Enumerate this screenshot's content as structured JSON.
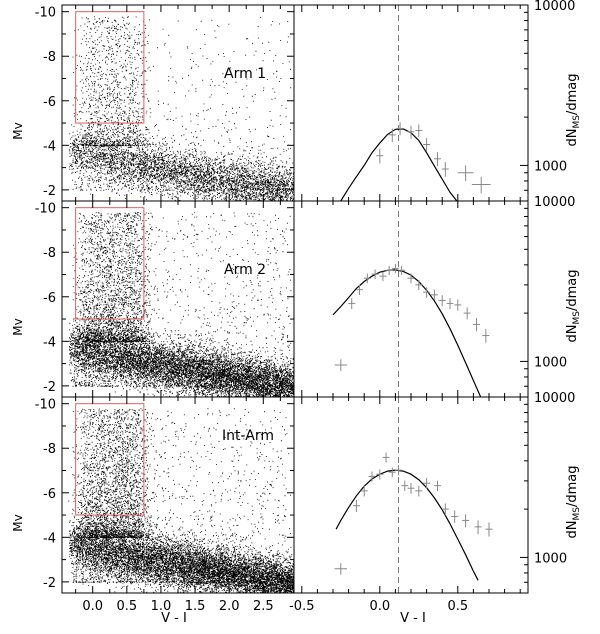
{
  "chart_data": [
    {
      "type": "scatter",
      "panel": "cmd",
      "label": "Arm 1",
      "xlabel": "",
      "ylabel": "Mv",
      "xlim": [
        -0.45,
        2.95
      ],
      "ylim": [
        -1.5,
        -10.3
      ],
      "y_ticks": [
        "-10",
        "-8",
        "-6",
        "-4",
        "-2"
      ],
      "selection_box": {
        "x": [
          -0.25,
          0.75
        ],
        "y": [
          -5,
          -10
        ]
      },
      "density": 6500
    },
    {
      "type": "line",
      "panel": "lf",
      "ylabel": "dN_MS/dmag",
      "xlim": [
        -0.55,
        0.95
      ],
      "ylim": [
        600,
        10000
      ],
      "y_log": true,
      "y_ticks": [
        "10000",
        "1000"
      ],
      "vline_x": 0.12,
      "points": [
        {
          "x": 0.0,
          "y": 1150,
          "err": 120
        },
        {
          "x": 0.08,
          "y": 1550,
          "err": 150
        },
        {
          "x": 0.13,
          "y": 1700,
          "err": 160
        },
        {
          "x": 0.2,
          "y": 1620,
          "err": 150
        },
        {
          "x": 0.25,
          "y": 1650,
          "err": 150
        },
        {
          "x": 0.3,
          "y": 1350,
          "err": 130
        },
        {
          "x": 0.37,
          "y": 1100,
          "err": 110
        },
        {
          "x": 0.42,
          "y": 950,
          "err": 100
        },
        {
          "x": 0.55,
          "y": 900,
          "err": 100,
          "xerr": 0.05
        },
        {
          "x": 0.65,
          "y": 760,
          "err": 90,
          "xerr": 0.06
        }
      ],
      "model": [
        [
          -0.3,
          520
        ],
        [
          -0.25,
          600
        ],
        [
          -0.2,
          720
        ],
        [
          -0.15,
          850
        ],
        [
          -0.1,
          1000
        ],
        [
          -0.05,
          1200
        ],
        [
          0.0,
          1380
        ],
        [
          0.05,
          1560
        ],
        [
          0.1,
          1680
        ],
        [
          0.15,
          1690
        ],
        [
          0.2,
          1600
        ],
        [
          0.25,
          1430
        ],
        [
          0.3,
          1200
        ],
        [
          0.35,
          990
        ],
        [
          0.4,
          820
        ],
        [
          0.45,
          680
        ],
        [
          0.5,
          590
        ],
        [
          0.55,
          520
        ]
      ]
    },
    {
      "type": "scatter",
      "panel": "cmd",
      "label": "Arm 2",
      "xlabel": "",
      "ylabel": "Mv",
      "xlim": [
        -0.45,
        2.95
      ],
      "ylim": [
        -1.5,
        -10.3
      ],
      "y_ticks": [
        "-10",
        "-8",
        "-6",
        "-4",
        "-2"
      ],
      "selection_box": {
        "x": [
          -0.25,
          0.75
        ],
        "y": [
          -5,
          -10
        ]
      },
      "density": 13000
    },
    {
      "type": "line",
      "panel": "lf",
      "ylabel": "dN_MS/dmag",
      "xlim": [
        -0.55,
        0.95
      ],
      "ylim": [
        600,
        10000
      ],
      "y_log": true,
      "y_ticks": [
        "10000",
        "1000"
      ],
      "vline_x": 0.12,
      "points": [
        {
          "x": -0.25,
          "y": 950,
          "err": 80,
          "xerr": 0.04
        },
        {
          "x": -0.18,
          "y": 2300,
          "err": 180
        },
        {
          "x": -0.13,
          "y": 2800,
          "err": 200
        },
        {
          "x": -0.08,
          "y": 3300,
          "err": 230
        },
        {
          "x": -0.03,
          "y": 3500,
          "err": 240
        },
        {
          "x": 0.02,
          "y": 3400,
          "err": 230
        },
        {
          "x": 0.06,
          "y": 3700,
          "err": 250
        },
        {
          "x": 0.1,
          "y": 3800,
          "err": 250
        },
        {
          "x": 0.14,
          "y": 3700,
          "err": 250
        },
        {
          "x": 0.2,
          "y": 3300,
          "err": 230
        },
        {
          "x": 0.25,
          "y": 3000,
          "err": 220
        },
        {
          "x": 0.3,
          "y": 2700,
          "err": 200
        },
        {
          "x": 0.35,
          "y": 2600,
          "err": 200
        },
        {
          "x": 0.4,
          "y": 2400,
          "err": 190
        },
        {
          "x": 0.45,
          "y": 2300,
          "err": 180
        },
        {
          "x": 0.5,
          "y": 2250,
          "err": 180
        },
        {
          "x": 0.56,
          "y": 2000,
          "err": 170
        },
        {
          "x": 0.62,
          "y": 1700,
          "err": 160
        },
        {
          "x": 0.68,
          "y": 1450,
          "err": 140
        }
      ],
      "model": [
        [
          -0.3,
          1950
        ],
        [
          -0.25,
          2200
        ],
        [
          -0.2,
          2500
        ],
        [
          -0.15,
          2850
        ],
        [
          -0.1,
          3150
        ],
        [
          -0.05,
          3400
        ],
        [
          0.0,
          3600
        ],
        [
          0.05,
          3700
        ],
        [
          0.1,
          3720
        ],
        [
          0.15,
          3640
        ],
        [
          0.2,
          3450
        ],
        [
          0.25,
          3150
        ],
        [
          0.3,
          2780
        ],
        [
          0.35,
          2380
        ],
        [
          0.4,
          1980
        ],
        [
          0.45,
          1600
        ],
        [
          0.5,
          1260
        ],
        [
          0.55,
          980
        ],
        [
          0.6,
          760
        ],
        [
          0.65,
          590
        ],
        [
          0.7,
          460
        ]
      ]
    },
    {
      "type": "scatter",
      "panel": "cmd",
      "label": "Int-Arm",
      "xlabel": "V - I",
      "ylabel": "Mv",
      "xlim": [
        -0.45,
        2.95
      ],
      "ylim": [
        -1.5,
        -10.3
      ],
      "x_ticks": [
        "0.0",
        "0.5",
        "1.0",
        "1.5",
        "2.0",
        "2.5"
      ],
      "x_tick_values": [
        0.0,
        0.5,
        1.0,
        1.5,
        2.0,
        2.5
      ],
      "y_ticks": [
        "-10",
        "-8",
        "-6",
        "-4",
        "-2"
      ],
      "selection_box": {
        "x": [
          -0.25,
          0.75
        ],
        "y": [
          -5,
          -10
        ]
      },
      "density": 14000
    },
    {
      "type": "line",
      "panel": "lf",
      "xlabel": "V - I",
      "ylabel": "dN_MS/dmag",
      "xlim": [
        -0.55,
        0.95
      ],
      "ylim": [
        600,
        10000
      ],
      "y_log": true,
      "x_ticks": [
        "-0.5",
        "0.0",
        "0.5"
      ],
      "x_tick_values": [
        -0.5,
        0.0,
        0.5
      ],
      "y_ticks": [
        "10000",
        "1000"
      ],
      "vline_x": 0.12,
      "points": [
        {
          "x": -0.25,
          "y": 850,
          "err": 70,
          "xerr": 0.04
        },
        {
          "x": -0.15,
          "y": 2100,
          "err": 180
        },
        {
          "x": -0.1,
          "y": 2600,
          "err": 200
        },
        {
          "x": -0.05,
          "y": 3200,
          "err": 230
        },
        {
          "x": 0.0,
          "y": 3300,
          "err": 240
        },
        {
          "x": 0.04,
          "y": 4200,
          "err": 300
        },
        {
          "x": 0.08,
          "y": 3400,
          "err": 240
        },
        {
          "x": 0.12,
          "y": 3500,
          "err": 250
        },
        {
          "x": 0.16,
          "y": 2800,
          "err": 210
        },
        {
          "x": 0.2,
          "y": 2700,
          "err": 210
        },
        {
          "x": 0.25,
          "y": 2600,
          "err": 200
        },
        {
          "x": 0.3,
          "y": 2900,
          "err": 220
        },
        {
          "x": 0.37,
          "y": 2800,
          "err": 210
        },
        {
          "x": 0.42,
          "y": 2000,
          "err": 170
        },
        {
          "x": 0.48,
          "y": 1800,
          "err": 160
        },
        {
          "x": 0.55,
          "y": 1700,
          "err": 160
        },
        {
          "x": 0.63,
          "y": 1550,
          "err": 150
        },
        {
          "x": 0.7,
          "y": 1500,
          "err": 150
        }
      ],
      "model": [
        [
          -0.28,
          1500
        ],
        [
          -0.25,
          1700
        ],
        [
          -0.2,
          2050
        ],
        [
          -0.15,
          2420
        ],
        [
          -0.1,
          2780
        ],
        [
          -0.05,
          3080
        ],
        [
          0.0,
          3300
        ],
        [
          0.05,
          3450
        ],
        [
          0.1,
          3500
        ],
        [
          0.15,
          3450
        ],
        [
          0.2,
          3300
        ],
        [
          0.25,
          3050
        ],
        [
          0.3,
          2720
        ],
        [
          0.35,
          2350
        ],
        [
          0.4,
          1980
        ],
        [
          0.45,
          1620
        ],
        [
          0.5,
          1300
        ],
        [
          0.55,
          1040
        ],
        [
          0.6,
          820
        ],
        [
          0.63,
          720
        ]
      ]
    }
  ]
}
